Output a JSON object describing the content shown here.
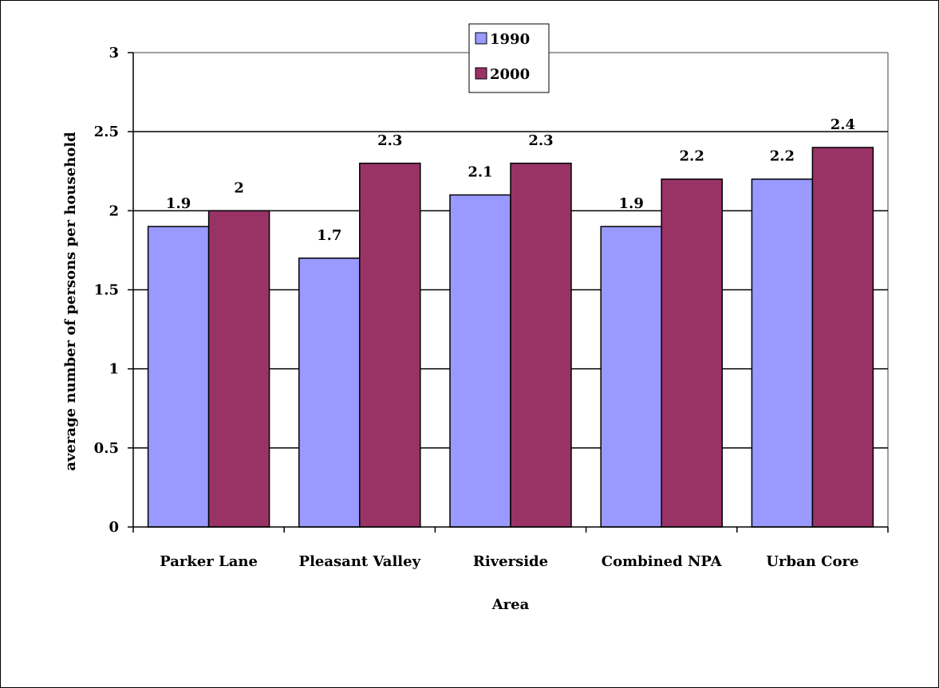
{
  "chart_data": {
    "type": "bar",
    "title": "",
    "xlabel": "Area",
    "ylabel": "average number of persons per household",
    "categories": [
      "Parker Lane",
      "Pleasant Valley",
      "Riverside",
      "Combined NPA",
      "Urban Core"
    ],
    "series": [
      {
        "name": "1990",
        "color": "#9999FF",
        "values": [
          1.9,
          1.7,
          2.1,
          1.9,
          2.2
        ]
      },
      {
        "name": "2000",
        "color": "#993366",
        "values": [
          2.0,
          2.3,
          2.3,
          2.2,
          2.4
        ]
      }
    ],
    "ylim": [
      0,
      3
    ],
    "yticks": [
      "0",
      "0.5",
      "1",
      "1.5",
      "2",
      "2.5",
      "3"
    ],
    "ytick_values": [
      0,
      0.5,
      1,
      1.5,
      2,
      2.5,
      3
    ],
    "data_labels": [
      [
        "1.9",
        "1.7",
        "2.1",
        "1.9",
        "2.2"
      ],
      [
        "2",
        "2.3",
        "2.3",
        "2.2",
        "2.4"
      ]
    ],
    "grid": true,
    "legend_position": "top-center"
  }
}
